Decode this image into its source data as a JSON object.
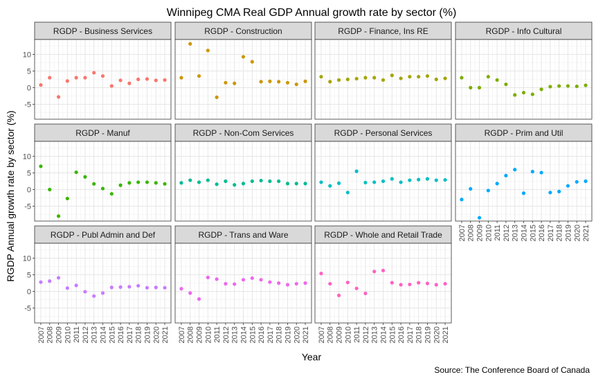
{
  "chart_data": {
    "type": "scatter",
    "title": "Winnipeg CMA Real GDP Annual growth rate by sector (%)",
    "xlabel": "Year",
    "ylabel": "RGDP Annual growth rate by sector (%)",
    "caption": "Source: The Conference Board of Canada",
    "x": [
      2007,
      2008,
      2009,
      2010,
      2011,
      2012,
      2013,
      2014,
      2015,
      2016,
      2017,
      2018,
      2019,
      2020,
      2021
    ],
    "x_tick_labels": [
      "2007",
      "2008",
      "2009",
      "2010",
      "2011",
      "2012",
      "2013",
      "2014",
      "2015",
      "2016",
      "2017",
      "2018",
      "2019",
      "2020",
      "2021"
    ],
    "ylim": [
      -9.5,
      14.5
    ],
    "y_ticks": [
      -5,
      0,
      5,
      10
    ],
    "y_tick_labels": [
      "-5",
      "0",
      "5",
      "10"
    ],
    "grid": true,
    "facets": [
      {
        "name": "RGDP - Business Services",
        "color": "#F8766D",
        "values": [
          0.8,
          3.0,
          -2.8,
          2.0,
          3.0,
          3.0,
          4.5,
          3.5,
          0.5,
          2.2,
          1.3,
          2.5,
          2.6,
          2.2,
          2.3
        ]
      },
      {
        "name": "RGDP - Construction",
        "color": "#CD9600",
        "values": [
          3.0,
          13.2,
          3.5,
          11.2,
          -2.9,
          1.5,
          1.3,
          9.3,
          7.8,
          1.8,
          1.9,
          1.8,
          1.5,
          1.0,
          1.9
        ]
      },
      {
        "name": "RGDP - Finance, Ins RE",
        "color": "#A3A500",
        "values": [
          3.3,
          1.8,
          2.3,
          2.5,
          2.7,
          3.0,
          3.0,
          2.3,
          3.7,
          2.8,
          3.3,
          3.3,
          3.5,
          2.5,
          2.8
        ]
      },
      {
        "name": "RGDP - Info Cultural",
        "color": "#7CAE00",
        "values": [
          3.0,
          0.0,
          0.0,
          3.3,
          2.3,
          1.0,
          -2.2,
          -1.5,
          -2.0,
          -0.5,
          0.3,
          0.5,
          0.5,
          0.4,
          0.7
        ]
      },
      {
        "name": "RGDP - Manuf",
        "color": "#39B600",
        "values": [
          7.0,
          0.0,
          -8.0,
          -2.7,
          5.2,
          3.8,
          1.7,
          0.3,
          -1.3,
          1.3,
          2.0,
          2.2,
          2.2,
          2.0,
          1.7
        ]
      },
      {
        "name": "RGDP - Non-Com Services",
        "color": "#00BB93",
        "values": [
          2.0,
          2.8,
          2.2,
          2.8,
          1.6,
          2.5,
          1.4,
          1.8,
          2.5,
          2.7,
          2.5,
          2.5,
          1.8,
          1.8,
          1.8
        ]
      },
      {
        "name": "RGDP - Personal Services",
        "color": "#00BFC4",
        "values": [
          2.2,
          1.1,
          1.9,
          -0.9,
          5.5,
          2.1,
          2.2,
          2.5,
          3.2,
          2.2,
          2.8,
          3.0,
          3.2,
          2.8,
          2.9
        ]
      },
      {
        "name": "RGDP - Prim and Util",
        "color": "#00A9FF",
        "values": [
          -3.0,
          0.2,
          -8.5,
          -0.3,
          1.8,
          4.2,
          6.0,
          -1.1,
          5.4,
          5.1,
          -0.9,
          -0.6,
          1.1,
          2.3,
          2.5
        ]
      },
      {
        "name": "RGDP - Publ Admin and Def",
        "color": "#C77CFF",
        "values": [
          2.8,
          3.1,
          4.1,
          1.0,
          1.8,
          -0.1,
          -1.4,
          -0.5,
          1.2,
          1.3,
          1.4,
          1.7,
          1.1,
          1.2,
          1.1
        ]
      },
      {
        "name": "RGDP - Trans and Ware",
        "color": "#ED68ED",
        "values": [
          0.8,
          -0.5,
          -2.3,
          4.2,
          3.7,
          2.3,
          2.2,
          3.5,
          4.0,
          3.5,
          2.8,
          2.5,
          2.0,
          2.3,
          2.5
        ]
      },
      {
        "name": "RGDP - Whole and Retail Trade",
        "color": "#FF61C3",
        "values": [
          5.4,
          2.3,
          -1.2,
          2.7,
          0.9,
          -0.6,
          6.0,
          6.3,
          2.6,
          2.0,
          2.1,
          2.6,
          2.4,
          2.0,
          2.3
        ]
      }
    ]
  }
}
